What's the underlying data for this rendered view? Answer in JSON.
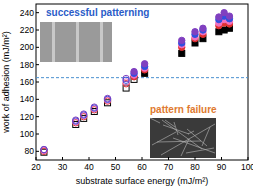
{
  "chart_data": {
    "type": "scatter",
    "x_label": "substrate surface energy (mJ/m²)",
    "y_label": "work of adhesion (mJ/m²)",
    "annotations": [
      "successful patterning",
      "pattern failure"
    ],
    "threshold": 165,
    "x": [
      23,
      35,
      38,
      42,
      47,
      54,
      57,
      61,
      75,
      80,
      83,
      89,
      91,
      93
    ],
    "series": [
      {
        "color": "#000000",
        "marker": "square",
        "values": [
          79,
          111,
          118,
          126,
          136,
          153,
          163,
          170,
          193,
          205,
          210,
          218,
          220,
          222
        ]
      },
      {
        "color": "#e03030",
        "marker": "circle",
        "values": [
          80,
          113,
          120,
          128,
          138,
          158,
          166,
          174,
          200,
          210,
          215,
          225,
          228,
          227
        ]
      },
      {
        "color": "#f070c0",
        "marker": "circle",
        "values": [
          81,
          114,
          121,
          129,
          139,
          160,
          168,
          176,
          203,
          212,
          218,
          228,
          232,
          230
        ]
      },
      {
        "color": "#3050e0",
        "marker": "circle",
        "values": [
          82,
          115,
          122,
          130,
          140,
          162,
          170,
          178,
          205,
          215,
          220,
          232,
          236,
          233
        ]
      },
      {
        "color": "#8040c0",
        "marker": "circle",
        "values": [
          82,
          116,
          123,
          131,
          141,
          164,
          172,
          181,
          208,
          218,
          222,
          235,
          240,
          236
        ]
      }
    ],
    "xlim": [
      20,
      100
    ],
    "xticks": [
      20,
      30,
      40,
      50,
      60,
      70,
      80,
      90,
      100
    ],
    "ylim": [
      70,
      250
    ],
    "yticks": [
      80,
      100,
      120,
      140,
      160,
      180,
      200,
      220,
      240
    ]
  }
}
